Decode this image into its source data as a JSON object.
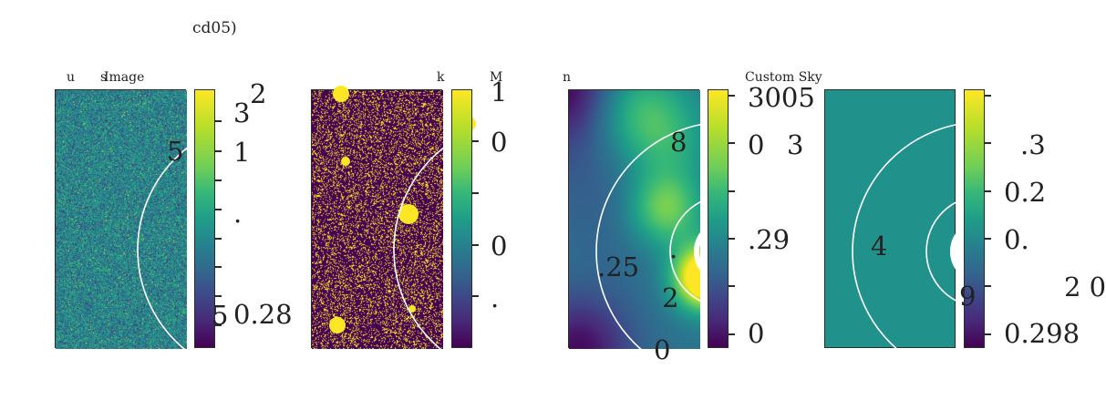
{
  "figure": {
    "title_fragment": "cd05)"
  },
  "chart_data": [
    {
      "type": "heatmap",
      "title_fragments": [
        "u",
        "s",
        "Image"
      ],
      "texture": "noise",
      "rings": true,
      "colorbar_labels": [
        "2",
        "3",
        "5",
        "1",
        ".",
        "5",
        "0.28"
      ]
    },
    {
      "type": "heatmap",
      "title_fragments": [
        "k",
        "M"
      ],
      "texture": "mask",
      "rings": true,
      "colorbar_labels": [
        "1",
        "0",
        "0",
        "."
      ]
    },
    {
      "type": "heatmap",
      "title_fragments": [
        "n",
        "Custom Sky"
      ],
      "texture": "smooth",
      "rings": true,
      "colorbar_labels": [
        "3005",
        "8",
        "0",
        "3",
        ".29",
        ".25",
        ".",
        "2",
        "0",
        "0"
      ]
    },
    {
      "type": "heatmap",
      "title_fragments": [],
      "texture": "uniform",
      "rings": true,
      "colorbar_labels": [
        ".3",
        "0.2",
        "4",
        "0.",
        "2 0",
        "9",
        "0.298"
      ]
    }
  ],
  "colors": {
    "viridis_dark": "#440154",
    "viridis_mid": "#21918c",
    "viridis_bright": "#fde725",
    "ring": "#ffffff"
  }
}
